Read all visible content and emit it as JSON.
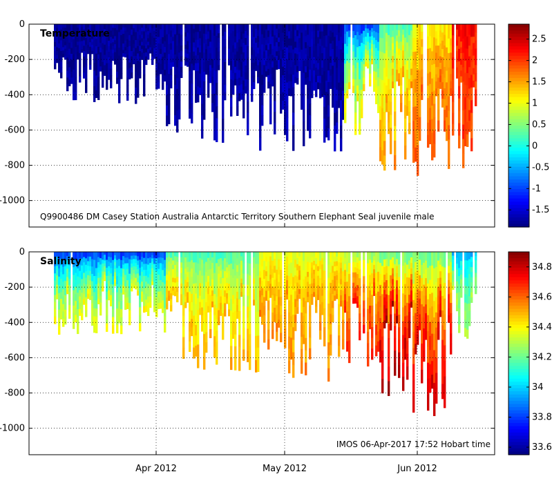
{
  "chart_data": [
    {
      "type": "heatmap",
      "title": "Temperature",
      "variable": "temperature",
      "annotation": "Q9900486  DM Casey  Station  Australia  Antarctic  Territory  Southern  Elephant  Seal  juvenile  male",
      "ylim": [
        -1150,
        0
      ],
      "yticks": [
        0,
        -200,
        -400,
        -600,
        -800,
        -1000
      ],
      "ytick_labels": [
        "0",
        "-200",
        "-400",
        "-600",
        "-800",
        "-1000"
      ],
      "xticks": [
        "Apr 2012",
        "May 2012",
        "Jun 2012"
      ],
      "colorbar": {
        "min": -1.9,
        "max": 2.85,
        "ticks": [
          2.5,
          2,
          1.5,
          1,
          0.5,
          0,
          -0.5,
          -1,
          -1.5
        ],
        "tick_labels": [
          "2.5",
          "2",
          "1.5",
          "1",
          "0.5",
          "0",
          "-0.5",
          "-1",
          "-1.5"
        ]
      },
      "profiles": [
        {
          "start_day": 0,
          "end_day": 26,
          "max_depth_m": 450,
          "surface_value": -1.8,
          "deep_value": -1.8
        },
        {
          "start_day": 26,
          "end_day": 48,
          "max_depth_m": 650,
          "surface_value": -1.8,
          "deep_value": -1.7
        },
        {
          "start_day": 48,
          "end_day": 68,
          "max_depth_m": 700,
          "surface_value": -1.8,
          "deep_value": -1.7
        },
        {
          "start_day": 68,
          "end_day": 76,
          "max_depth_m": 620,
          "surface_value": -1.4,
          "deep_value": 1.2
        },
        {
          "start_day": 76,
          "end_day": 84,
          "max_depth_m": 850,
          "surface_value": 0.0,
          "deep_value": 1.6
        },
        {
          "start_day": 84,
          "end_day": 93,
          "max_depth_m": 900,
          "surface_value": 1.0,
          "deep_value": 1.8
        },
        {
          "start_day": 93,
          "end_day": 99,
          "max_depth_m": 800,
          "surface_value": 2.3,
          "deep_value": 1.9
        }
      ]
    },
    {
      "type": "heatmap",
      "title": "Salinity",
      "variable": "salinity",
      "annotation": "IMOS 06-Apr-2017 17:52 Hobart time",
      "ylim": [
        -1150,
        0
      ],
      "yticks": [
        0,
        -200,
        -400,
        -600,
        -800,
        -1000
      ],
      "ytick_labels": [
        "0",
        "-200",
        "-400",
        "-600",
        "-800",
        "-1000"
      ],
      "xticks": [
        "Apr 2012",
        "May 2012",
        "Jun 2012"
      ],
      "colorbar": {
        "min": 33.55,
        "max": 34.9,
        "ticks": [
          34.8,
          34.6,
          34.4,
          34.2,
          34,
          33.8,
          33.6
        ],
        "tick_labels": [
          "34.8",
          "34.6",
          "34.4",
          "34.2",
          "34",
          "33.8",
          "33.6"
        ]
      },
      "profiles": [
        {
          "start_day": 0,
          "end_day": 26,
          "max_depth_m": 450,
          "surface_value": 33.7,
          "deep_value": 34.4
        },
        {
          "start_day": 26,
          "end_day": 48,
          "max_depth_m": 650,
          "surface_value": 34.1,
          "deep_value": 34.5
        },
        {
          "start_day": 48,
          "end_day": 68,
          "max_depth_m": 700,
          "surface_value": 34.3,
          "deep_value": 34.55
        },
        {
          "start_day": 68,
          "end_day": 76,
          "max_depth_m": 620,
          "surface_value": 34.2,
          "deep_value": 34.7
        },
        {
          "start_day": 76,
          "end_day": 84,
          "max_depth_m": 850,
          "surface_value": 34.1,
          "deep_value": 34.85
        },
        {
          "start_day": 84,
          "end_day": 93,
          "max_depth_m": 900,
          "surface_value": 34.1,
          "deep_value": 34.8
        },
        {
          "start_day": 93,
          "end_day": 99,
          "max_depth_m": 500,
          "surface_value": 33.9,
          "deep_value": 34.3
        }
      ]
    }
  ],
  "colors": {
    "background": "#ffffff",
    "axis": "#000000",
    "grid": "#000000"
  }
}
